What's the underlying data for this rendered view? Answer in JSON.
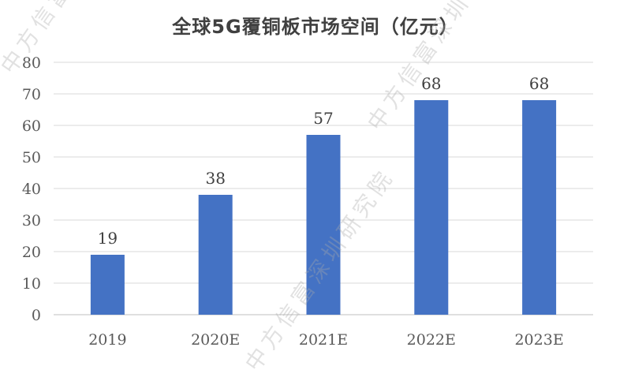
{
  "chart_data": {
    "type": "bar",
    "title": "全球5G覆铜板市场空间（亿元）",
    "categories": [
      "2019",
      "2020E",
      "2021E",
      "2022E",
      "2023E"
    ],
    "values": [
      19,
      38,
      57,
      68,
      68
    ],
    "data_labels": [
      "19",
      "38",
      "57",
      "68",
      "68"
    ],
    "ylim": [
      0,
      80
    ],
    "yticks": [
      0,
      10,
      20,
      30,
      40,
      50,
      60,
      70,
      80
    ],
    "xlabel": "",
    "ylabel": "",
    "grid": true,
    "legend": "none",
    "bar_color": "#4472C4",
    "grid_color": "#D9D9D9"
  },
  "watermark": "中方信富深圳研究院"
}
